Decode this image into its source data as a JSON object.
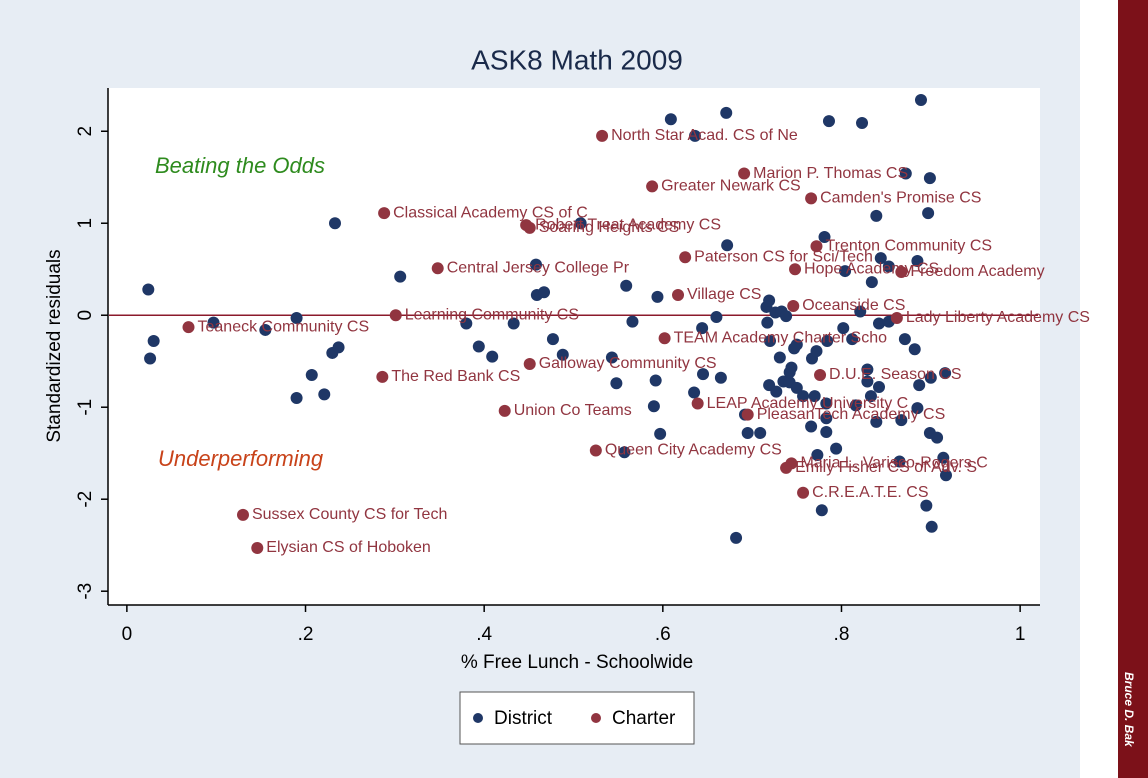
{
  "chart_data": {
    "type": "scatter",
    "title": "ASK8 Math 2009",
    "xlabel": "% Free Lunch - Schoolwide",
    "ylabel": "Standardized residuals",
    "xlim": [
      -0.02,
      1.02
    ],
    "ylim": [
      -3.15,
      2.47
    ],
    "xticks": [
      0,
      {
        "value": 0.2,
        "label": ".2"
      },
      {
        "value": 0.4,
        "label": ".4"
      },
      {
        "value": 0.6,
        "label": ".6"
      },
      {
        "value": 0.8,
        "label": ".8"
      },
      1
    ],
    "yticks": [
      -3,
      -2,
      -1,
      0,
      1,
      2
    ],
    "reference_line": {
      "y": 0,
      "color": "#8b1a2b"
    },
    "annotations": [
      {
        "text": "Beating the Odds",
        "color": "#2e8b1e"
      },
      {
        "text": "Underperforming",
        "color": "#c8431a"
      }
    ],
    "legend": "bottom",
    "byline": "Bruce D. Bak",
    "series": [
      {
        "name": "District",
        "color": "#1f3766",
        "x": [
          0.024,
          0.03,
          0.026,
          0.097,
          0.155,
          0.19,
          0.19,
          0.207,
          0.23,
          0.237,
          0.221,
          0.233,
          0.306,
          0.38,
          0.394,
          0.409,
          0.433,
          0.459,
          0.467,
          0.458,
          0.477,
          0.488,
          0.508,
          0.559,
          0.543,
          0.548,
          0.566,
          0.594,
          0.592,
          0.59,
          0.557,
          0.597,
          0.609,
          0.636,
          0.671,
          0.672,
          0.644,
          0.66,
          0.635,
          0.645,
          0.665,
          0.692,
          0.695,
          0.709,
          0.682,
          0.717,
          0.716,
          0.726,
          0.733,
          0.719,
          0.738,
          0.72,
          0.75,
          0.731,
          0.747,
          0.735,
          0.719,
          0.727,
          0.742,
          0.742,
          0.744,
          0.75,
          0.757,
          0.767,
          0.772,
          0.784,
          0.77,
          0.783,
          0.783,
          0.766,
          0.783,
          0.794,
          0.773,
          0.778,
          0.781,
          0.786,
          0.823,
          0.839,
          0.834,
          0.812,
          0.821,
          0.842,
          0.853,
          0.853,
          0.844,
          0.885,
          0.889,
          0.899,
          0.897,
          0.872,
          0.816,
          0.829,
          0.829,
          0.833,
          0.839,
          0.842,
          0.867,
          0.887,
          0.882,
          0.885,
          0.871,
          0.899,
          0.907,
          0.865,
          0.895,
          0.901,
          0.917,
          0.914,
          0.916,
          0.804,
          0.9,
          0.802
        ],
        "values": [
          0.28,
          -0.28,
          -0.47,
          -0.08,
          -0.16,
          -0.03,
          -0.9,
          -0.65,
          -0.41,
          -0.35,
          -0.86,
          1.0,
          0.42,
          -0.09,
          -0.34,
          -0.45,
          -0.09,
          0.22,
          0.25,
          0.55,
          -0.26,
          -0.43,
          1.0,
          0.32,
          -0.46,
          -0.74,
          -0.07,
          0.2,
          -0.71,
          -0.99,
          -1.49,
          -1.29,
          2.13,
          1.95,
          2.2,
          0.76,
          -0.14,
          -0.02,
          -0.84,
          -0.64,
          -0.68,
          -1.08,
          -1.28,
          -1.28,
          -2.42,
          -0.08,
          0.09,
          0.03,
          0.04,
          0.16,
          -0.01,
          -0.28,
          -0.32,
          -0.46,
          -0.36,
          -0.72,
          -0.76,
          -0.83,
          -0.73,
          -0.62,
          -0.57,
          -0.79,
          -0.88,
          -0.47,
          -0.39,
          -0.28,
          -0.88,
          -0.96,
          -1.12,
          -1.21,
          -1.27,
          -1.45,
          -1.52,
          -2.12,
          0.85,
          2.11,
          2.09,
          1.08,
          0.36,
          -0.26,
          0.04,
          -0.09,
          -0.07,
          0.53,
          0.62,
          0.59,
          2.34,
          1.49,
          1.11,
          1.54,
          -0.98,
          -0.59,
          -0.72,
          -0.88,
          -1.16,
          -0.78,
          -1.14,
          -0.76,
          -0.37,
          -1.01,
          -0.26,
          -1.28,
          -1.33,
          -1.59,
          -2.07,
          -2.3,
          -1.74,
          -1.55,
          -0.63,
          0.48,
          -0.68,
          -0.14
        ]
      },
      {
        "name": "Charter",
        "color": "#913540",
        "x": [
          0.532,
          0.691,
          0.588,
          0.766,
          0.288,
          0.447,
          0.451,
          0.772,
          0.625,
          0.348,
          0.748,
          0.867,
          0.617,
          0.746,
          0.301,
          0.862,
          0.069,
          0.602,
          0.451,
          0.286,
          0.776,
          0.639,
          0.423,
          0.695,
          0.525,
          0.744,
          0.738,
          0.757,
          0.13,
          0.146
        ],
        "values": [
          1.95,
          1.54,
          1.4,
          1.27,
          1.11,
          0.98,
          0.95,
          0.75,
          0.63,
          0.51,
          0.5,
          0.47,
          0.22,
          0.1,
          0.0,
          -0.03,
          -0.13,
          -0.25,
          -0.53,
          -0.67,
          -0.65,
          -0.96,
          -1.04,
          -1.08,
          -1.47,
          -1.61,
          -1.66,
          -1.93,
          -2.17,
          -2.53
        ],
        "point_labels": [
          "North Star Acad. CS of Ne",
          "Marion P. Thomas CS",
          "Greater Newark CS",
          "Camden's Promise CS",
          "Classical Academy CS of C",
          "Robert Treat Academy CS",
          "Soaring Heights CS",
          "Trenton Community CS",
          "Paterson CS for Sci/Tech",
          "Central Jersey College Pr",
          "Hope Academy CS",
          "Freedom Academy",
          "Village CS",
          "Oceanside CS",
          "Learning Community CS",
          "Lady Liberty Academy CS",
          "Teaneck Community CS",
          "TEAM Academy Charter Scho",
          "Galloway Community CS",
          "The Red Bank CS",
          "D.U.E. Season CS",
          "LEAP Academy University C",
          "Union Co Teams",
          "PleasanTech Academy CS",
          "Queen City Academy CS",
          "Maria L. Varisco-Rogers C",
          "Emily Fisher CS of Adv. S",
          "C.R.E.A.T.E. CS",
          "Sussex County CS for Tech",
          "Elysian CS of Hoboken"
        ]
      }
    ]
  }
}
